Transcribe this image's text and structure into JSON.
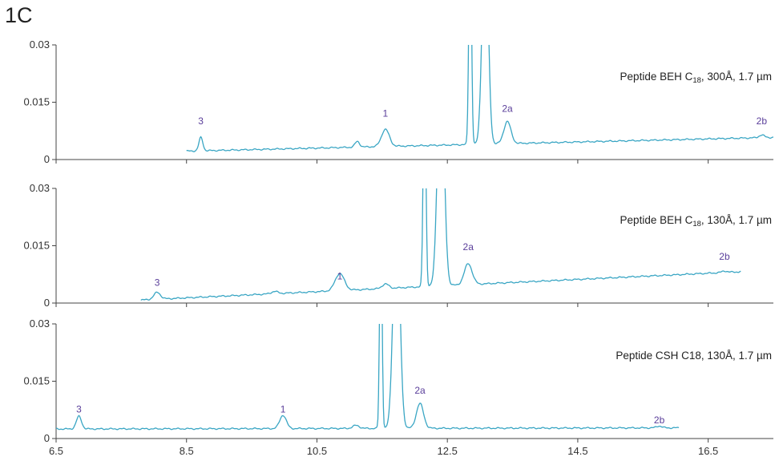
{
  "figure_label": "1C",
  "colors": {
    "trace": "#3aa6c4",
    "axis": "#444444",
    "peak_label": "#5a3e9a"
  },
  "chart_data": {
    "type": "line",
    "shared_x_ticks": [
      "6.5",
      "8.5",
      "10.5",
      "12.5",
      "14.5",
      "16.5"
    ],
    "xlim": [
      6.5,
      17.5
    ],
    "panels": [
      {
        "title": "Peptide BEH C18, 300Å, 1.7 µm",
        "title_main": "Peptide BEH C",
        "title_sub": "18",
        "title_rest": ", 300Å, 1.7 µm",
        "ylim": [
          0,
          0.03
        ],
        "y_ticks": [
          "0.03",
          "0.015",
          "0"
        ],
        "x_start": 8.5,
        "x_end": 17.5,
        "baseline_start": 0.0022,
        "baseline_end": 0.0058,
        "peaks": [
          {
            "label": "3",
            "x": 8.72,
            "h": 0.0035,
            "w": 0.03,
            "label_y": 0.0092
          },
          {
            "label": "",
            "x": 11.12,
            "h": 0.0015,
            "w": 0.035,
            "label_y": null
          },
          {
            "label": "1",
            "x": 11.55,
            "h": 0.0045,
            "w": 0.06,
            "label_y": 0.0112
          },
          {
            "label": "",
            "x": 12.85,
            "h": 0.06,
            "w": 0.02,
            "label_y": null
          },
          {
            "label": "",
            "x": 13.08,
            "h": 0.06,
            "w": 0.045,
            "label_y": null
          },
          {
            "label": "2a",
            "x": 13.42,
            "h": 0.0058,
            "w": 0.055,
            "label_y": 0.0125
          },
          {
            "label": "2b",
            "x": 17.32,
            "h": 0.0007,
            "w": 0.04,
            "label_y": 0.0092
          }
        ]
      },
      {
        "title": "Peptide BEH C18, 130Å, 1.7 µm",
        "title_main": "Peptide BEH C",
        "title_sub": "18",
        "title_rest": ", 130Å, 1.7 µm",
        "ylim": [
          0,
          0.03
        ],
        "y_ticks": [
          "0.03",
          "0.015",
          "0"
        ],
        "x_start": 7.8,
        "x_end": 17.0,
        "baseline_start": 0.0008,
        "baseline_end": 0.0082,
        "peaks": [
          {
            "label": "3",
            "x": 8.05,
            "h": 0.0018,
            "w": 0.05,
            "label_y": 0.0045
          },
          {
            "label": "",
            "x": 9.85,
            "h": 0.0006,
            "w": 0.05,
            "label_y": null
          },
          {
            "label": "1",
            "x": 10.85,
            "h": 0.0045,
            "w": 0.07,
            "label_y": 0.0062
          },
          {
            "label": "",
            "x": 11.55,
            "h": 0.0012,
            "w": 0.05,
            "label_y": null
          },
          {
            "label": "",
            "x": 12.15,
            "h": 0.06,
            "w": 0.02,
            "label_y": null
          },
          {
            "label": "",
            "x": 12.4,
            "h": 0.06,
            "w": 0.05,
            "label_y": null
          },
          {
            "label": "2a",
            "x": 12.82,
            "h": 0.0055,
            "w": 0.06,
            "label_y": 0.0138
          },
          {
            "label": "2b",
            "x": 16.75,
            "h": 0.0004,
            "w": 0.04,
            "label_y": 0.0113
          }
        ]
      },
      {
        "title": "Peptide CSH C18, 130Å, 1.7 µm",
        "title_main": "Peptide CSH C18",
        "title_sub": "",
        "title_rest": ", 130Å, 1.7 µm",
        "ylim": [
          0,
          0.03
        ],
        "y_ticks": [
          "0.03",
          "0.015",
          "0"
        ],
        "x_start": 6.5,
        "x_end": 16.05,
        "baseline_start": 0.0025,
        "baseline_end": 0.0028,
        "peaks": [
          {
            "label": "3",
            "x": 6.85,
            "h": 0.0033,
            "w": 0.04,
            "label_y": 0.0068
          },
          {
            "label": "1",
            "x": 9.98,
            "h": 0.0035,
            "w": 0.05,
            "label_y": 0.0068
          },
          {
            "label": "",
            "x": 11.1,
            "h": 0.0008,
            "w": 0.05,
            "label_y": null
          },
          {
            "label": "",
            "x": 11.48,
            "h": 0.06,
            "w": 0.018,
            "label_y": null
          },
          {
            "label": "",
            "x": 11.72,
            "h": 0.06,
            "w": 0.05,
            "label_y": null
          },
          {
            "label": "2a",
            "x": 12.08,
            "h": 0.0065,
            "w": 0.055,
            "label_y": 0.0118
          },
          {
            "label": "2b",
            "x": 15.75,
            "h": 0.0005,
            "w": 0.04,
            "label_y": 0.004
          }
        ]
      }
    ]
  }
}
